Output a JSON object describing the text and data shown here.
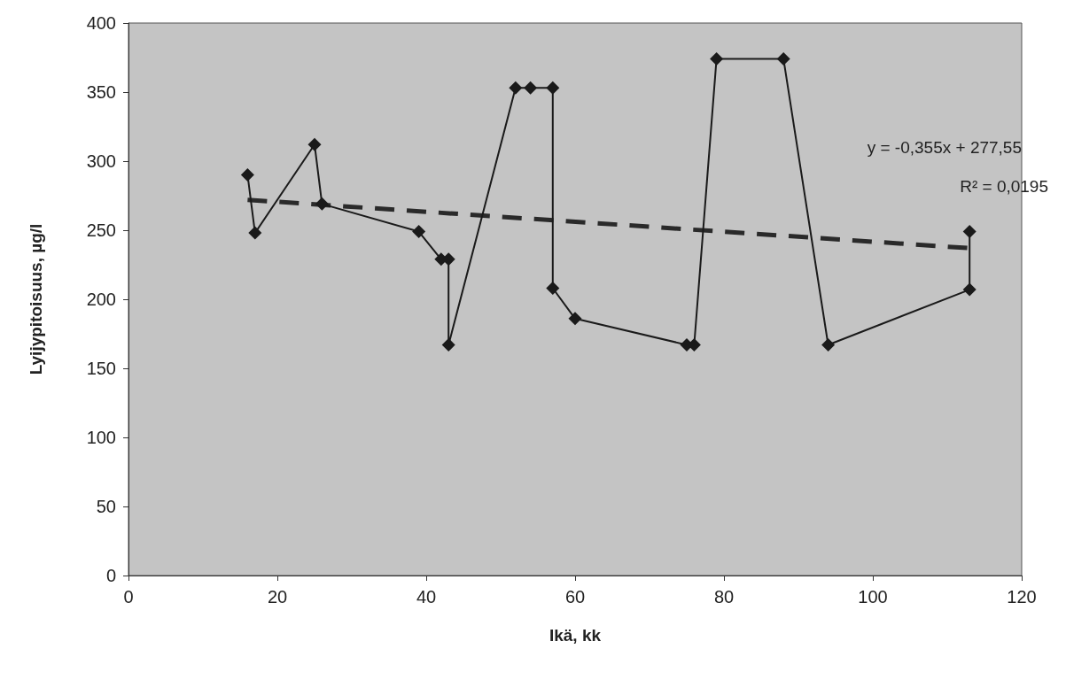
{
  "chart_data": {
    "type": "line",
    "xlabel": "Ikä, kk",
    "ylabel": "Lyijypitoisuus, µg/l",
    "xlim": [
      0,
      120
    ],
    "xticks": [
      0,
      20,
      40,
      60,
      80,
      100,
      120
    ],
    "ylim": [
      0,
      400
    ],
    "yticks": [
      0,
      50,
      100,
      150,
      200,
      250,
      300,
      350,
      400
    ],
    "grid": false,
    "marker": "diamond",
    "series": [
      {
        "color": "#1a1a1a",
        "x": [
          16,
          17,
          25,
          26,
          39,
          42,
          43,
          43,
          52,
          54,
          57,
          57,
          60,
          75,
          76,
          79,
          88,
          94,
          113,
          113
        ],
        "values": [
          290,
          248,
          312,
          269,
          249,
          229,
          229,
          167,
          353,
          353,
          353,
          208,
          186,
          167,
          167,
          374,
          374,
          167,
          207,
          249
        ]
      },
      {
        "type": "line",
        "color": "#2a2a2a",
        "marker": "none",
        "line_style": "dashed",
        "x": [
          16,
          113
        ],
        "values": [
          272,
          237
        ]
      }
    ],
    "annotations": [
      "y = -0,355x + 277,55",
      "R² = 0,0195"
    ]
  }
}
